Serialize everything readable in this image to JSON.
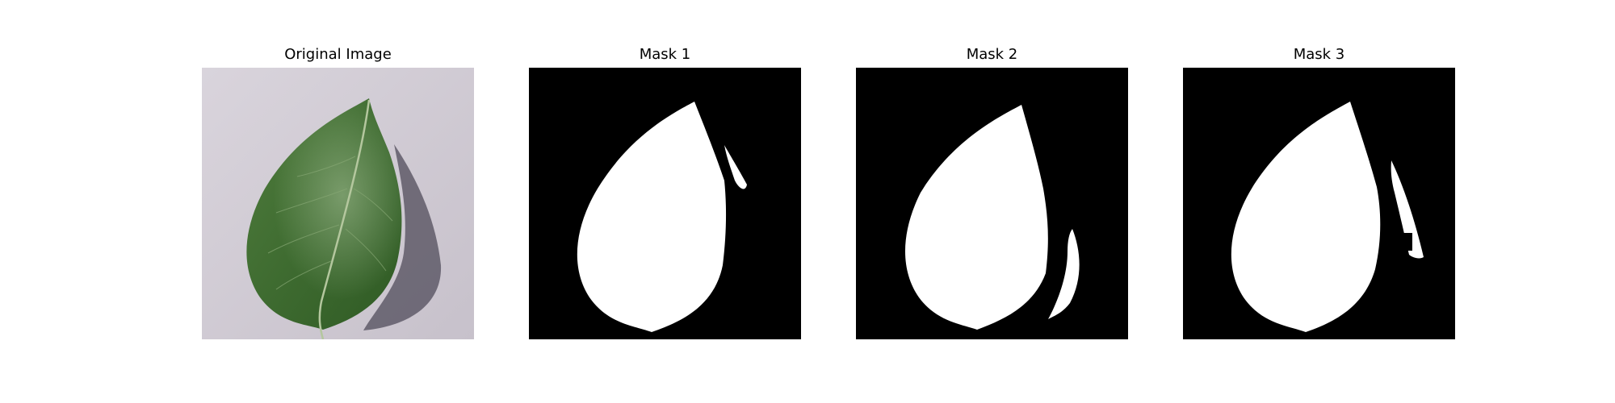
{
  "panels": [
    {
      "title": "Original Image",
      "kind": "photo",
      "subject": "green-leaf-on-gray-surface"
    },
    {
      "title": "Mask 1",
      "kind": "mask"
    },
    {
      "title": "Mask 2",
      "kind": "mask"
    },
    {
      "title": "Mask 3",
      "kind": "mask"
    }
  ],
  "colors": {
    "background": "#ffffff",
    "mask_foreground": "#ffffff",
    "mask_background": "#000000",
    "leaf_dark": "#2f5a24",
    "leaf_light": "#6e9a5c",
    "surface": "#cfc9d2",
    "shadow": "#5f5b68"
  }
}
